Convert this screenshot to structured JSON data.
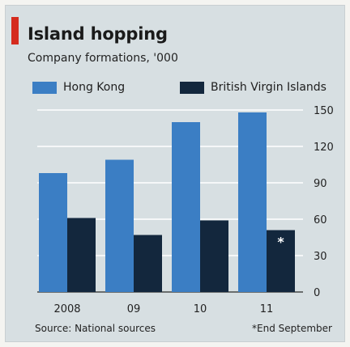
{
  "header": {
    "title": "Island hopping",
    "subtitle": "Company formations, '000"
  },
  "legend": [
    {
      "label": "Hong Kong",
      "color": "#3b7ec4"
    },
    {
      "label": "British Virgin Islands",
      "color": "#13273d"
    }
  ],
  "footer": {
    "source": "Source: National sources",
    "note": "*End September"
  },
  "chart_data": {
    "type": "bar",
    "categories": [
      "2008",
      "09",
      "10",
      "11"
    ],
    "series": [
      {
        "name": "Hong Kong",
        "values": [
          98,
          109,
          140,
          148
        ],
        "color": "#3b7ec4"
      },
      {
        "name": "British Virgin Islands",
        "values": [
          61,
          47,
          59,
          51
        ],
        "color": "#13273d"
      }
    ],
    "annotations": [
      {
        "category": "11",
        "series": "British Virgin Islands",
        "text": "*"
      }
    ],
    "ylim": [
      0,
      150
    ],
    "yticks": [
      0,
      30,
      60,
      90,
      120,
      150
    ],
    "y_axis_side": "right",
    "grid": true,
    "legend_position": "top-left"
  }
}
